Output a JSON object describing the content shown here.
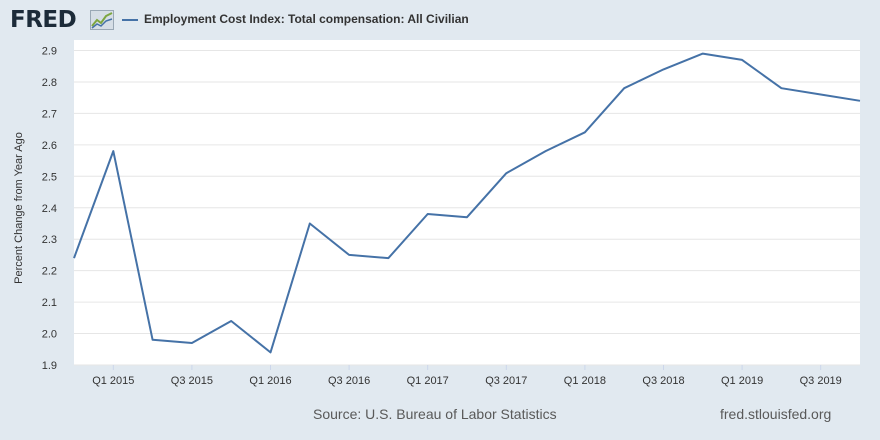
{
  "header": {
    "logo_text": "FRED",
    "logo_icon": "line-graph-icon",
    "legend_label": "Employment Cost Index: Total compensation: All Civilian"
  },
  "colors": {
    "series": "#4572a7",
    "background": "#e1e9f0",
    "plot_background": "#ffffff",
    "grid": "#e6e6e6"
  },
  "footer": {
    "source": "Source: U.S. Bureau of Labor Statistics",
    "url": "fred.stlouisfed.org"
  },
  "chart_data": {
    "type": "line",
    "title": "",
    "xlabel": "",
    "ylabel": "Percent Change from Year Ago",
    "ylim": [
      1.9,
      2.9
    ],
    "yticks": [
      "1.9",
      "2.0",
      "2.1",
      "2.2",
      "2.3",
      "2.4",
      "2.5",
      "2.6",
      "2.7",
      "2.8",
      "2.9"
    ],
    "grid": true,
    "legend_position": "top-left",
    "x_tick_labels": [
      "Q1 2015",
      "Q3 2015",
      "Q1 2016",
      "Q3 2016",
      "Q1 2017",
      "Q3 2017",
      "Q1 2018",
      "Q3 2018",
      "Q1 2019",
      "Q3 2019"
    ],
    "x": [
      "Q4 2014",
      "Q1 2015",
      "Q2 2015",
      "Q3 2015",
      "Q4 2015",
      "Q1 2016",
      "Q2 2016",
      "Q3 2016",
      "Q4 2016",
      "Q1 2017",
      "Q2 2017",
      "Q3 2017",
      "Q4 2017",
      "Q1 2018",
      "Q2 2018",
      "Q3 2018",
      "Q4 2018",
      "Q1 2019",
      "Q2 2019",
      "Q3 2019",
      "Q4 2019"
    ],
    "series": [
      {
        "name": "Employment Cost Index: Total compensation: All Civilian",
        "values": [
          2.24,
          2.58,
          1.98,
          1.97,
          2.04,
          1.94,
          2.35,
          2.25,
          2.24,
          2.38,
          2.37,
          2.51,
          2.58,
          2.64,
          2.78,
          2.84,
          2.89,
          2.87,
          2.78,
          2.76,
          2.74
        ]
      }
    ]
  }
}
